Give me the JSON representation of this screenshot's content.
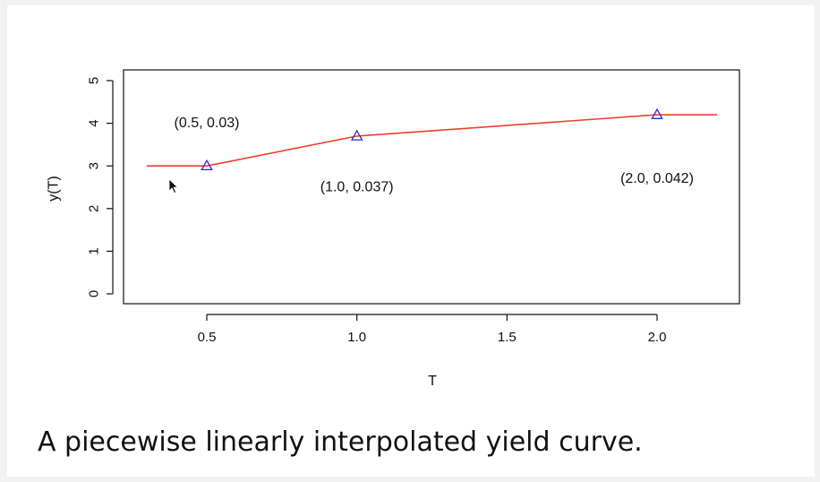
{
  "chart_data": {
    "type": "line",
    "title": "",
    "xlabel": "T",
    "ylabel": "y(T)",
    "xlim": [
      0.3,
      2.2
    ],
    "ylim": [
      0,
      5
    ],
    "x_ticks": [
      "0.5",
      "1.0",
      "1.5",
      "2.0"
    ],
    "y_ticks": [
      "0",
      "1",
      "2",
      "3",
      "4",
      "5"
    ],
    "grid": false,
    "series": [
      {
        "color": "#e8412e",
        "x": [
          0.3,
          0.5,
          1.0,
          2.0,
          2.2
        ],
        "y": [
          3.0,
          3.0,
          3.7,
          4.2,
          4.2
        ]
      }
    ],
    "markers": {
      "shape": "triangle",
      "color": "#2b2bd6",
      "x": [
        0.5,
        1.0,
        2.0
      ],
      "y": [
        3.0,
        3.7,
        4.2
      ]
    },
    "annotations": [
      {
        "text": "(0.5, 0.03)",
        "x": 0.5,
        "y": 4.0
      },
      {
        "text": "(1.0, 0.037)",
        "x": 1.0,
        "y": 2.5
      },
      {
        "text": "(2.0, 0.042)",
        "x": 2.0,
        "y": 2.7
      }
    ]
  },
  "caption": "A piecewise linearly interpolated yield curve.",
  "icons": {
    "cursor": "mouse-pointer-icon"
  }
}
